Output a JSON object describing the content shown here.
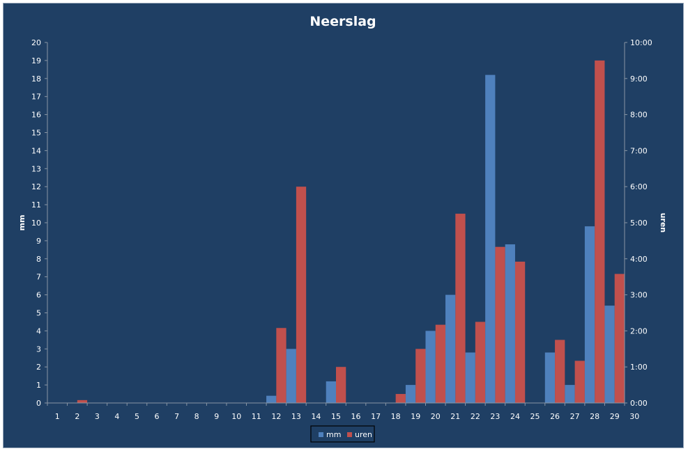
{
  "chart_data": {
    "type": "bar",
    "title": "Neerslag",
    "ylabel": "mm",
    "y2label": "uren",
    "ylim": [
      0,
      20
    ],
    "y2lim_hours": [
      0,
      10
    ],
    "x_ticks": [
      "1",
      "2",
      "3",
      "4",
      "5",
      "6",
      "7",
      "8",
      "9",
      "10",
      "11",
      "12",
      "13",
      "14",
      "15",
      "16",
      "17",
      "18",
      "19",
      "20",
      "21",
      "22",
      "23",
      "24",
      "25",
      "26",
      "27",
      "28",
      "29",
      "30"
    ],
    "y_ticks": [
      "0",
      "1",
      "2",
      "3",
      "4",
      "5",
      "6",
      "7",
      "8",
      "9",
      "10",
      "11",
      "12",
      "13",
      "14",
      "15",
      "16",
      "17",
      "18",
      "19",
      "20"
    ],
    "y2_ticks": [
      "0:00",
      "1:00",
      "2:00",
      "3:00",
      "4:00",
      "5:00",
      "6:00",
      "7:00",
      "8:00",
      "9:00",
      "10:00"
    ],
    "categories": [
      1,
      2,
      3,
      4,
      5,
      6,
      7,
      8,
      9,
      10,
      11,
      12,
      13,
      14,
      15,
      16,
      17,
      18,
      19,
      20,
      21,
      22,
      23,
      24,
      25,
      26,
      27,
      28,
      29
    ],
    "series": [
      {
        "name": "mm",
        "axis": "left",
        "color": "#4f81bd",
        "values": [
          0,
          0,
          0,
          0,
          0,
          0,
          0,
          0,
          0,
          0,
          0,
          0.4,
          3.0,
          0,
          1.2,
          0,
          0,
          0,
          1.0,
          4.0,
          6.0,
          2.8,
          18.2,
          8.8,
          0,
          2.8,
          1.0,
          9.8,
          5.4
        ]
      },
      {
        "name": "uren",
        "axis": "right",
        "color": "#c0504d",
        "values_hours": [
          0,
          0.08,
          0,
          0,
          0,
          0,
          0,
          0,
          0,
          0,
          0,
          2.08,
          6.0,
          0,
          1.0,
          0,
          0,
          0.25,
          1.5,
          2.17,
          5.25,
          2.25,
          4.33,
          3.92,
          0,
          1.75,
          1.17,
          9.5,
          3.58
        ]
      }
    ],
    "legend": {
      "position": "bottom",
      "entries": [
        "mm",
        "uren"
      ]
    },
    "grid": false
  }
}
